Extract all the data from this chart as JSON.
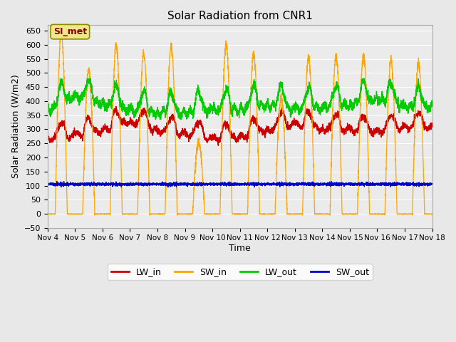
{
  "title": "Solar Radiation from CNR1",
  "xlabel": "Time",
  "ylabel": "Solar Radiation (W/m2)",
  "ylim": [
    -50,
    670
  ],
  "yticks": [
    -50,
    0,
    50,
    100,
    150,
    200,
    250,
    300,
    350,
    400,
    450,
    500,
    550,
    600,
    650
  ],
  "fig_bg_color": "#e8e8e8",
  "plot_bg_color": "#ebebeb",
  "grid_color": "#ffffff",
  "annotation_text": "SI_met",
  "annotation_box_facecolor": "#f0e68c",
  "annotation_box_edgecolor": "#8b8b00",
  "annotation_text_color": "#8b0000",
  "colors": {
    "LW_in": "#cc0000",
    "SW_in": "#ffa500",
    "LW_out": "#00cc00",
    "SW_out": "#0000cc"
  },
  "x_tick_labels": [
    "Nov 4",
    "Nov 5",
    "Nov 6",
    "Nov 7",
    "Nov 8",
    "Nov 9",
    "Nov 10",
    "Nov 11",
    "Nov 12",
    "Nov 13",
    "Nov 14",
    "Nov 15",
    "Nov 16",
    "Nov 17",
    "Nov 18"
  ],
  "num_days": 14,
  "samples_per_day": 288,
  "sw_in_peaks": [
    640,
    510,
    600,
    570,
    600,
    255,
    600,
    570,
    410,
    555,
    560,
    560,
    545,
    535
  ],
  "lw_in_base": [
    265,
    278,
    295,
    330,
    295,
    285,
    265,
    272,
    298,
    318,
    302,
    298,
    292,
    308
  ],
  "lw_out_base": [
    363,
    418,
    390,
    368,
    358,
    358,
    368,
    372,
    388,
    372,
    378,
    388,
    408,
    378
  ],
  "sw_out_level": 105
}
